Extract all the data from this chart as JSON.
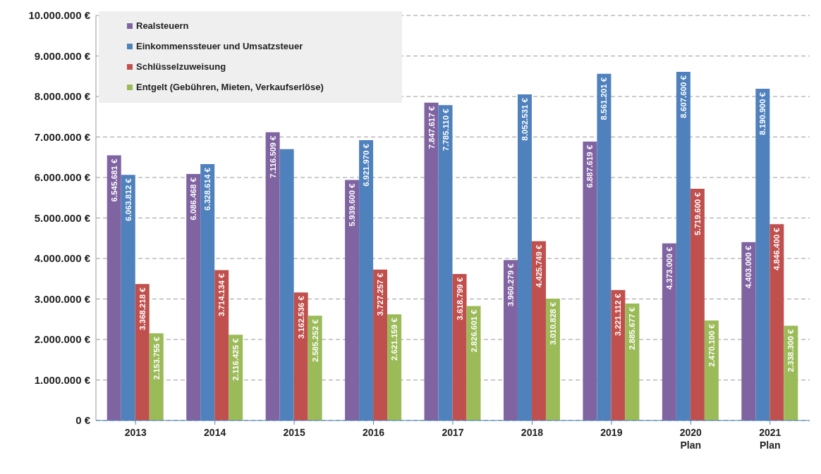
{
  "chart_data": {
    "type": "bar",
    "categories": [
      "2013",
      "2014",
      "2015",
      "2016",
      "2017",
      "2018",
      "2019",
      "2020\nPlan",
      "2021\nPlan"
    ],
    "series": [
      {
        "name": "Realsteuern",
        "color": "#8064a2",
        "values": [
          6545681,
          6086468,
          7116509,
          5939600,
          7847617,
          3960279,
          6887619,
          4373000,
          4403000
        ],
        "value_labels": [
          "6.545.681 €",
          "6.086.468 €",
          "7.116.509 €",
          "5.939.600 €",
          "7.847.617 €",
          "3.960.279 €",
          "6.887.619 €",
          "4.373.000 €",
          "4.403.000 €"
        ]
      },
      {
        "name": "Einkommenssteuer und Umsatzsteuer",
        "color": "#4f81bd",
        "values": [
          6063812,
          6328614,
          6700000,
          6921970,
          7785110,
          8052531,
          8561201,
          8607600,
          8190900
        ],
        "value_labels": [
          "6.063.812 €",
          "6.328.614 €",
          null,
          "6.921.970 €",
          "7.785.110 €",
          "8.052.531 €",
          "8.561.201 €",
          "8.607.600 €",
          "8.190.900 €"
        ]
      },
      {
        "name": "Schlüsselzuweisung",
        "color": "#c0504d",
        "values": [
          3368218,
          3714134,
          3162536,
          3727257,
          3618799,
          4425749,
          3221112,
          5719600,
          4846400
        ],
        "value_labels": [
          "3.368.218 €",
          "3.714.134 €",
          "3.162.536 €",
          "3.727.257 €",
          "3.618.799 €",
          "4.425.749 €",
          "3.221.112 €",
          "5.719.600 €",
          "4.846.400 €"
        ]
      },
      {
        "name": "Entgelt (Gebühren, Mieten, Verkaufserlöse)",
        "color": "#9bbb59",
        "values": [
          2153755,
          2116425,
          2585252,
          2621159,
          2826601,
          3010828,
          2885677,
          2470100,
          2338300
        ],
        "value_labels": [
          "2.153.755 €",
          "2.116.425 €",
          "2.585.252 €",
          "2.621.159 €",
          "2.826.601 €",
          "3.010.828 €",
          "2.885.677 €",
          "2.470.100 €",
          "2.338.300 €"
        ]
      }
    ],
    "ylim": [
      0,
      10000000
    ],
    "yticks": [
      {
        "value": 0,
        "label": "0 €"
      },
      {
        "value": 1000000,
        "label": "1.000.000 €"
      },
      {
        "value": 2000000,
        "label": "2.000.000 €"
      },
      {
        "value": 3000000,
        "label": "3.000.000 €"
      },
      {
        "value": 4000000,
        "label": "4.000.000 €"
      },
      {
        "value": 5000000,
        "label": "5.000.000 €"
      },
      {
        "value": 6000000,
        "label": "6.000.000 €"
      },
      {
        "value": 7000000,
        "label": "7.000.000 €"
      },
      {
        "value": 8000000,
        "label": "8.000.000 €"
      },
      {
        "value": 9000000,
        "label": "9.000.000 €"
      },
      {
        "value": 10000000,
        "label": "10.000.000 €"
      }
    ],
    "grid": "y",
    "legend": "top left"
  }
}
